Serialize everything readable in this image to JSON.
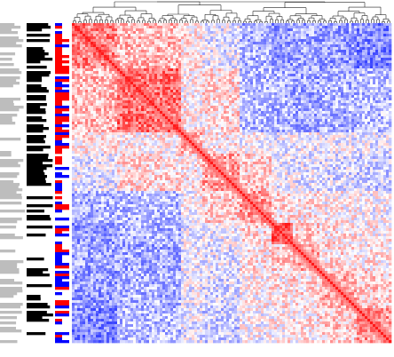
{
  "chart_data": {
    "type": "heatmap",
    "title": "",
    "xlabel": "",
    "ylabel": "",
    "matrix_size": 120,
    "symmetric": true,
    "diagonal_value": 1,
    "value_range": [
      -1,
      1
    ],
    "color_scale": {
      "low": "#1f2bff",
      "mid": "#ffffff",
      "high": "#ff1a1a"
    },
    "dendrogram": {
      "position": "top",
      "color": "#222222"
    },
    "clusters": [
      {
        "start": 0,
        "end": 16,
        "within": 0.55
      },
      {
        "start": 17,
        "end": 40,
        "within": 0.62
      },
      {
        "start": 41,
        "end": 48,
        "within": 0.35
      },
      {
        "start": 49,
        "end": 62,
        "within": 0.4
      },
      {
        "start": 63,
        "end": 74,
        "within": 0.42
      },
      {
        "start": 75,
        "end": 82,
        "within": 0.75
      },
      {
        "start": 83,
        "end": 92,
        "within": 0.4
      },
      {
        "start": 93,
        "end": 106,
        "within": 0.35
      },
      {
        "start": 107,
        "end": 119,
        "within": 0.45
      }
    ],
    "cluster_pairs": [
      {
        "a": 0,
        "b": 1,
        "value": 0.3
      },
      {
        "a": 0,
        "b": 2,
        "value": 0.1
      },
      {
        "a": 0,
        "b": 3,
        "value": -0.1
      },
      {
        "a": 0,
        "b": 4,
        "value": -0.35
      },
      {
        "a": 0,
        "b": 5,
        "value": -0.45
      },
      {
        "a": 0,
        "b": 6,
        "value": -0.4
      },
      {
        "a": 0,
        "b": 7,
        "value": -0.45
      },
      {
        "a": 0,
        "b": 8,
        "value": -0.55
      },
      {
        "a": 1,
        "b": 2,
        "value": 0.05
      },
      {
        "a": 1,
        "b": 3,
        "value": 0.15
      },
      {
        "a": 1,
        "b": 4,
        "value": -0.3
      },
      {
        "a": 1,
        "b": 5,
        "value": -0.35
      },
      {
        "a": 1,
        "b": 6,
        "value": -0.4
      },
      {
        "a": 1,
        "b": 7,
        "value": -0.35
      },
      {
        "a": 1,
        "b": 8,
        "value": -0.3
      },
      {
        "a": 2,
        "b": 3,
        "value": 0.1
      },
      {
        "a": 2,
        "b": 4,
        "value": 0.0
      },
      {
        "a": 2,
        "b": 5,
        "value": -0.1
      },
      {
        "a": 2,
        "b": 6,
        "value": -0.05
      },
      {
        "a": 2,
        "b": 7,
        "value": -0.05
      },
      {
        "a": 2,
        "b": 8,
        "value": -0.1
      },
      {
        "a": 3,
        "b": 4,
        "value": 0.2
      },
      {
        "a": 3,
        "b": 5,
        "value": -0.05
      },
      {
        "a": 3,
        "b": 6,
        "value": -0.1
      },
      {
        "a": 3,
        "b": 7,
        "value": -0.15
      },
      {
        "a": 3,
        "b": 8,
        "value": -0.2
      },
      {
        "a": 4,
        "b": 5,
        "value": 0.15
      },
      {
        "a": 4,
        "b": 6,
        "value": 0.1
      },
      {
        "a": 4,
        "b": 7,
        "value": 0.05
      },
      {
        "a": 4,
        "b": 8,
        "value": 0.0
      },
      {
        "a": 5,
        "b": 6,
        "value": 0.2
      },
      {
        "a": 5,
        "b": 7,
        "value": 0.1
      },
      {
        "a": 5,
        "b": 8,
        "value": 0.05
      },
      {
        "a": 6,
        "b": 7,
        "value": 0.15
      },
      {
        "a": 6,
        "b": 8,
        "value": 0.1
      },
      {
        "a": 7,
        "b": 8,
        "value": 0.2
      }
    ],
    "annotation_tracks": [
      {
        "name": "",
        "palette": [
          "#bdbdbd",
          "#ffffff"
        ]
      },
      {
        "name": "",
        "palette": [
          "#000000",
          "#ffffff"
        ]
      },
      {
        "name": "",
        "palette": [
          "#0000ff",
          "#ff0000",
          "#ffffff"
        ]
      }
    ]
  }
}
